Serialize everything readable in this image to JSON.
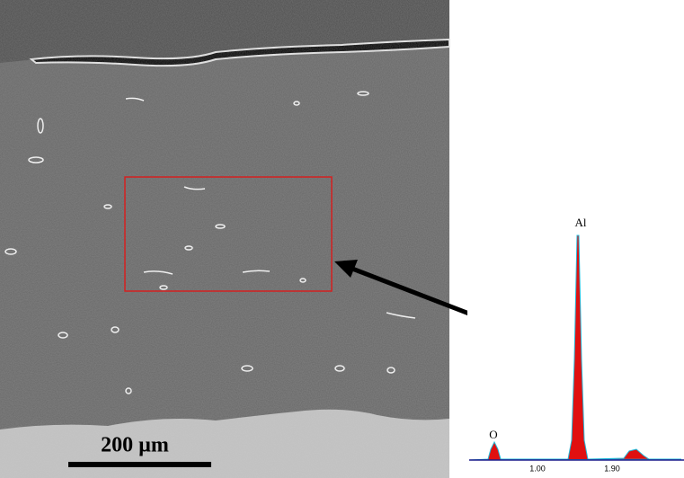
{
  "micrograph": {
    "scale_bar": "200 µm"
  },
  "spectrum": {
    "peak_labels": [
      "O",
      "Al"
    ],
    "x_tick_labels": [
      "1.00",
      "1.90"
    ]
  }
}
